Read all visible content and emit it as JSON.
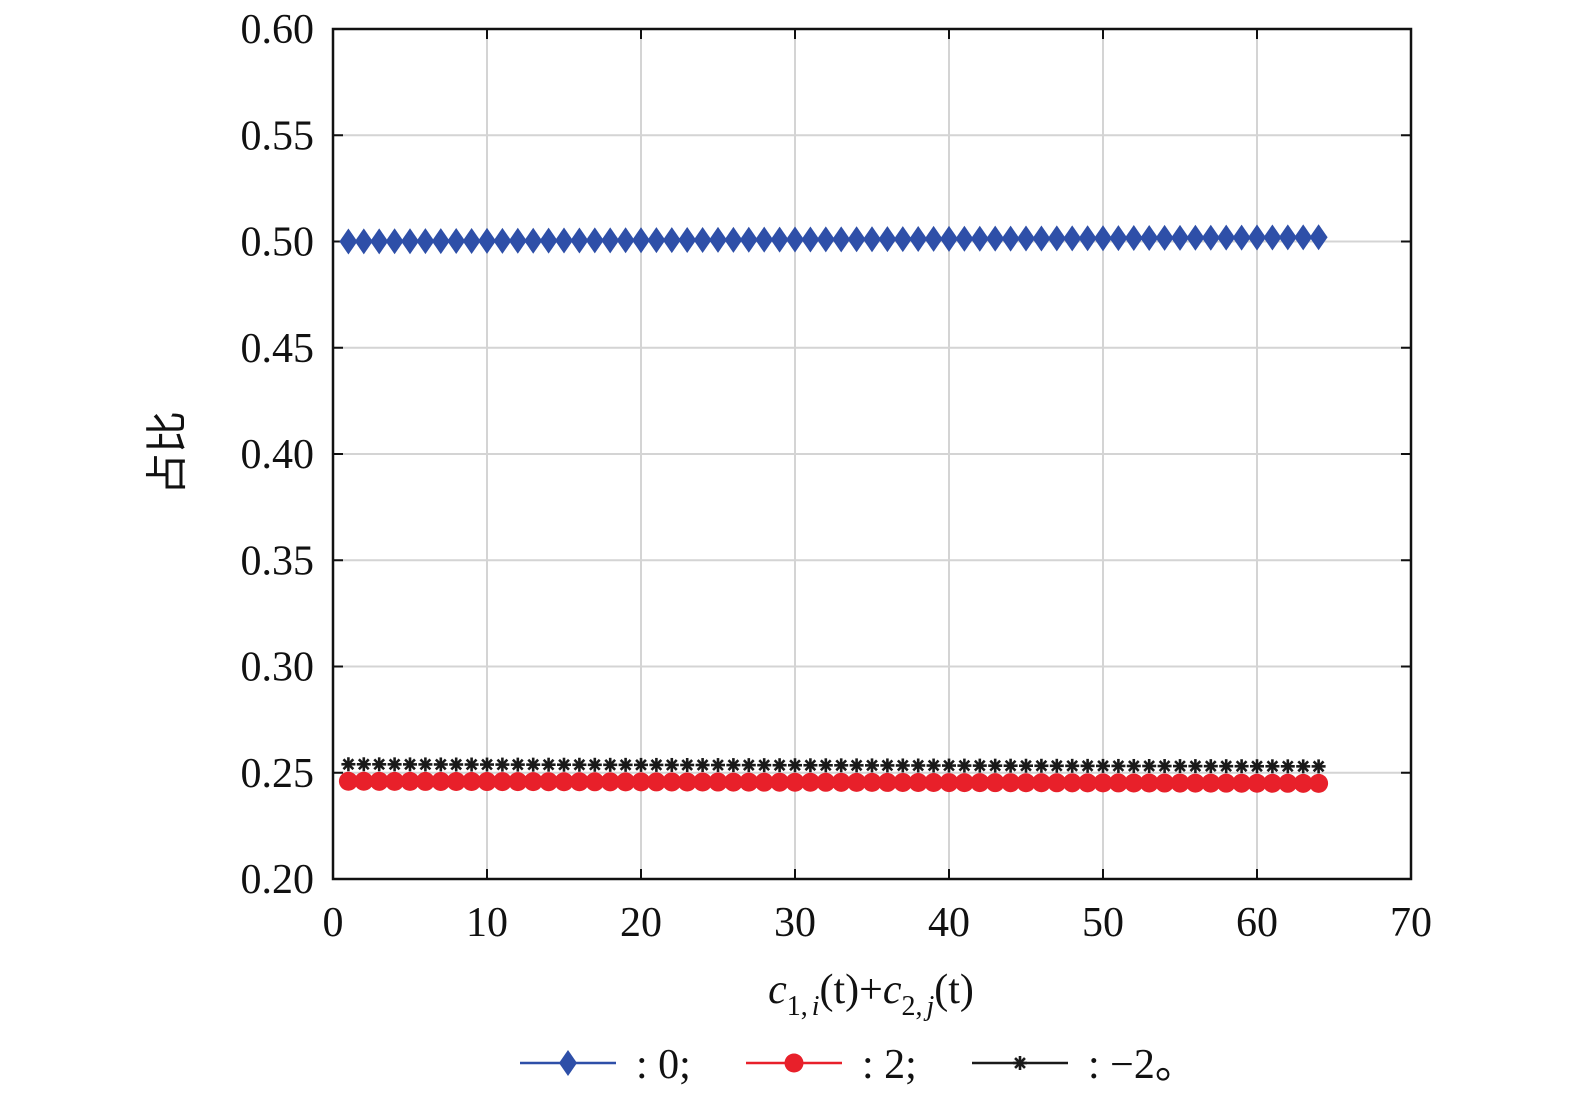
{
  "chart_data": {
    "type": "scatter",
    "title": "",
    "xlabel": {
      "c": "c",
      "sub1": "1,",
      "i": "i",
      "t1": "(t)+",
      "c2": "c",
      "sub2": "2,",
      "j": "j",
      "t2": "(t)"
    },
    "ylabel": "占比",
    "xlim": [
      0,
      70
    ],
    "ylim": [
      0.2,
      0.6
    ],
    "x_ticks": [
      "0",
      "10",
      "20",
      "30",
      "40",
      "50",
      "60",
      "70"
    ],
    "y_ticks": [
      "0.20",
      "0.25",
      "0.30",
      "0.35",
      "0.40",
      "0.45",
      "0.50",
      "0.55",
      "0.60"
    ],
    "grid": true,
    "legend_position": "bottom",
    "x": [
      1,
      2,
      3,
      4,
      5,
      6,
      7,
      8,
      9,
      10,
      11,
      12,
      13,
      14,
      15,
      16,
      17,
      18,
      19,
      20,
      21,
      22,
      23,
      24,
      25,
      26,
      27,
      28,
      29,
      30,
      31,
      32,
      33,
      34,
      35,
      36,
      37,
      38,
      39,
      40,
      41,
      42,
      43,
      44,
      45,
      46,
      47,
      48,
      49,
      50,
      51,
      52,
      53,
      54,
      55,
      56,
      57,
      58,
      59,
      60,
      61,
      62,
      63,
      64
    ],
    "series": [
      {
        "name": ": 0;",
        "marker": "diamond",
        "color": "#2E4FA8",
        "y_start": 0.5,
        "y_end": 0.502
      },
      {
        "name": ": 2;",
        "marker": "circle",
        "color": "#E8202A",
        "y_start": 0.246,
        "y_end": 0.245
      },
      {
        "name": ": −2。",
        "marker": "star",
        "color": "#1a1a1a",
        "y_start": 0.254,
        "y_end": 0.253
      }
    ]
  }
}
